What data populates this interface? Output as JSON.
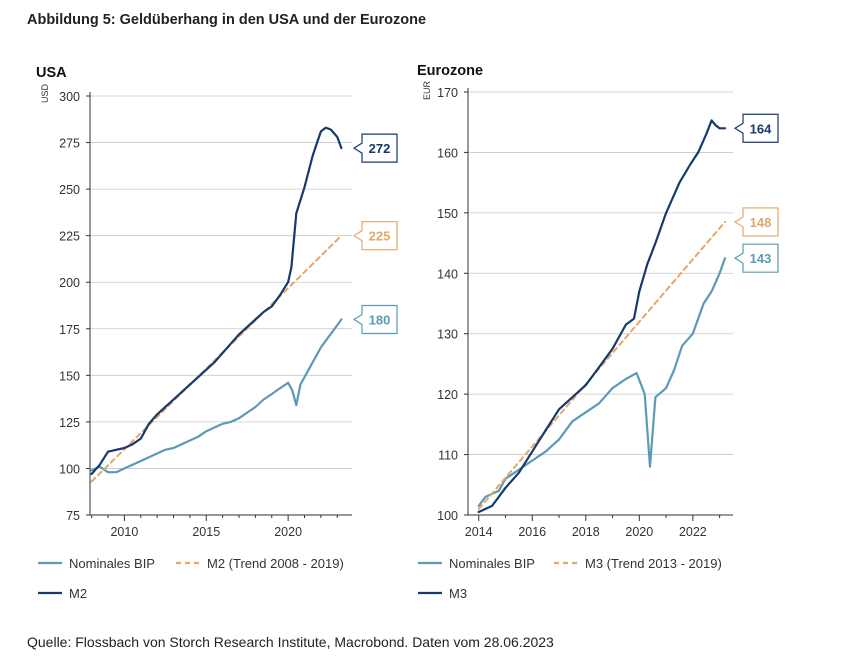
{
  "title": "Abbildung 5: Geldüberhang in den USA und der Eurozone",
  "source": "Quelle: Flossbach von Storch Research Institute, Macrobond. Daten vom 28.06.2023",
  "colors": {
    "nominal": "#5b9ab5",
    "trend": "#e3a76a",
    "money": "#163a6b"
  },
  "chart_data": [
    {
      "type": "line",
      "title": "USA",
      "ylabel": "USD",
      "xlim": [
        2007.9,
        2023.9
      ],
      "ylim": [
        75,
        300
      ],
      "x_ticks": [
        2010,
        2015,
        2020
      ],
      "y_ticks": [
        75,
        100,
        125,
        150,
        175,
        200,
        225,
        250,
        275,
        300
      ],
      "series": [
        {
          "name": "Nominales BIP",
          "color": "#5b9ab5",
          "dashed": false,
          "end_label": "180",
          "points": [
            [
              2008,
              99
            ],
            [
              2008.5,
              101
            ],
            [
              2009,
              98
            ],
            [
              2009.5,
              98
            ],
            [
              2010,
              100
            ],
            [
              2010.5,
              102
            ],
            [
              2011,
              104
            ],
            [
              2011.5,
              106
            ],
            [
              2012,
              108
            ],
            [
              2012.5,
              110
            ],
            [
              2013,
              111
            ],
            [
              2013.5,
              113
            ],
            [
              2014,
              115
            ],
            [
              2014.5,
              117
            ],
            [
              2015,
              120
            ],
            [
              2015.5,
              122
            ],
            [
              2016,
              124
            ],
            [
              2016.5,
              125
            ],
            [
              2017,
              127
            ],
            [
              2017.5,
              130
            ],
            [
              2018,
              133
            ],
            [
              2018.5,
              137
            ],
            [
              2019,
              140
            ],
            [
              2019.5,
              143
            ],
            [
              2020,
              146
            ],
            [
              2020.25,
              142
            ],
            [
              2020.5,
              134
            ],
            [
              2020.75,
              145
            ],
            [
              2021,
              149
            ],
            [
              2021.5,
              157
            ],
            [
              2022,
              165
            ],
            [
              2022.5,
              171
            ],
            [
              2023,
              177
            ],
            [
              2023.25,
              180
            ]
          ]
        },
        {
          "name": "M2 (Trend 2008 - 2019)",
          "color": "#e3a76a",
          "dashed": true,
          "end_label": "225",
          "points": [
            [
              2008,
              93
            ],
            [
              2023.25,
              225
            ]
          ]
        },
        {
          "name": "M2",
          "color": "#163a6b",
          "dashed": false,
          "end_label": "272",
          "points": [
            [
              2008,
              97
            ],
            [
              2008.5,
              102
            ],
            [
              2009,
              109
            ],
            [
              2009.5,
              110
            ],
            [
              2010,
              111
            ],
            [
              2010.5,
              113
            ],
            [
              2011,
              116
            ],
            [
              2011.5,
              124
            ],
            [
              2012,
              129
            ],
            [
              2012.5,
              133
            ],
            [
              2013,
              137
            ],
            [
              2013.5,
              141
            ],
            [
              2014,
              145
            ],
            [
              2014.5,
              149
            ],
            [
              2015,
              153
            ],
            [
              2015.5,
              157
            ],
            [
              2016,
              162
            ],
            [
              2016.5,
              167
            ],
            [
              2017,
              172
            ],
            [
              2017.5,
              176
            ],
            [
              2018,
              180
            ],
            [
              2018.5,
              184
            ],
            [
              2019,
              187
            ],
            [
              2019.5,
              193
            ],
            [
              2020,
              200
            ],
            [
              2020.2,
              208
            ],
            [
              2020.5,
              237
            ],
            [
              2021,
              251
            ],
            [
              2021.5,
              268
            ],
            [
              2022,
              281
            ],
            [
              2022.3,
              283
            ],
            [
              2022.6,
              282
            ],
            [
              2023,
              278
            ],
            [
              2023.25,
              272
            ]
          ]
        }
      ]
    },
    {
      "type": "line",
      "title": "Eurozone",
      "ylabel": "EUR",
      "xlim": [
        2013.6,
        2023.5
      ],
      "ylim": [
        100,
        170
      ],
      "x_ticks": [
        2014,
        2016,
        2018,
        2020,
        2022
      ],
      "y_ticks": [
        100,
        110,
        120,
        130,
        140,
        150,
        160,
        170
      ],
      "series": [
        {
          "name": "Nominales BIP",
          "color": "#5b9ab5",
          "dashed": false,
          "end_label": "143",
          "points": [
            [
              2014,
              101.5
            ],
            [
              2014.25,
              103
            ],
            [
              2014.5,
              103.5
            ],
            [
              2014.75,
              104
            ],
            [
              2015,
              106
            ],
            [
              2015.5,
              107.5
            ],
            [
              2016,
              109
            ],
            [
              2016.5,
              110.5
            ],
            [
              2017,
              112.5
            ],
            [
              2017.5,
              115.5
            ],
            [
              2018,
              117
            ],
            [
              2018.5,
              118.5
            ],
            [
              2019,
              121
            ],
            [
              2019.5,
              122.5
            ],
            [
              2019.9,
              123.5
            ],
            [
              2020.2,
              120
            ],
            [
              2020.4,
              108
            ],
            [
              2020.6,
              119.5
            ],
            [
              2021,
              121
            ],
            [
              2021.3,
              124
            ],
            [
              2021.6,
              128
            ],
            [
              2022,
              130
            ],
            [
              2022.4,
              135
            ],
            [
              2022.7,
              137
            ],
            [
              2023,
              140
            ],
            [
              2023.2,
              142.5
            ]
          ]
        },
        {
          "name": "M3 (Trend 2013 - 2019)",
          "color": "#e3a76a",
          "dashed": true,
          "end_label": "148",
          "points": [
            [
              2014,
              101
            ],
            [
              2023.2,
              148.5
            ]
          ]
        },
        {
          "name": "M3",
          "color": "#163a6b",
          "dashed": false,
          "end_label": "164",
          "points": [
            [
              2014,
              100.5
            ],
            [
              2014.5,
              101.5
            ],
            [
              2015,
              104.5
            ],
            [
              2015.5,
              107
            ],
            [
              2016,
              110.5
            ],
            [
              2016.5,
              114
            ],
            [
              2017,
              117.5
            ],
            [
              2017.5,
              119.5
            ],
            [
              2018,
              121.5
            ],
            [
              2018.5,
              124.5
            ],
            [
              2019,
              127.5
            ],
            [
              2019.5,
              131.5
            ],
            [
              2019.8,
              132.5
            ],
            [
              2020,
              137
            ],
            [
              2020.3,
              141.5
            ],
            [
              2020.6,
              145
            ],
            [
              2021,
              150
            ],
            [
              2021.5,
              155
            ],
            [
              2021.9,
              158
            ],
            [
              2022.2,
              160
            ],
            [
              2022.5,
              163
            ],
            [
              2022.7,
              165.3
            ],
            [
              2022.85,
              164.5
            ],
            [
              2023,
              164
            ],
            [
              2023.2,
              164
            ]
          ]
        }
      ]
    }
  ]
}
